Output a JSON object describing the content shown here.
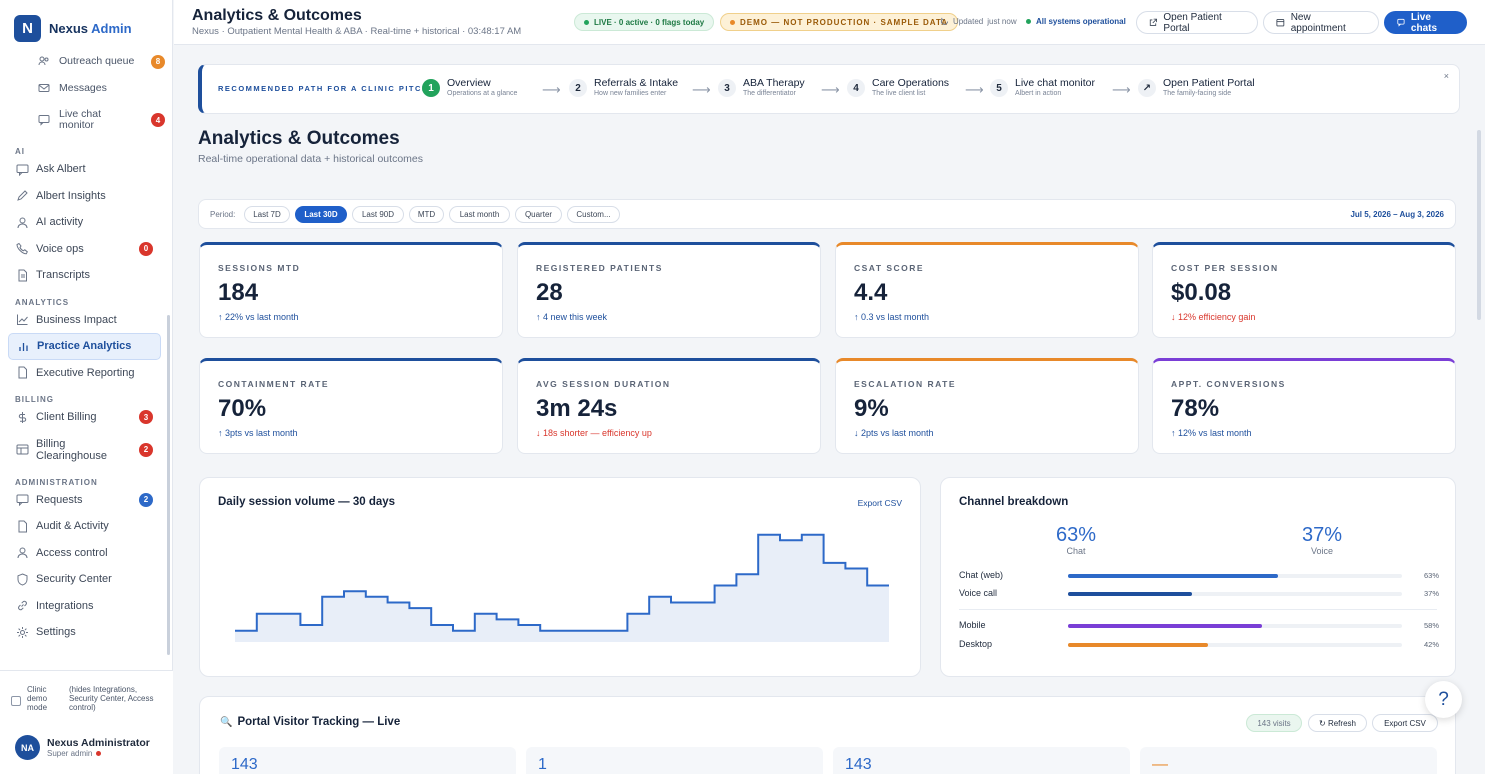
{
  "brand": {
    "logo_letter": "N",
    "name": "Nexus",
    "suffix": "Admin"
  },
  "sidebar": {
    "top_items": [
      {
        "label": "Outreach queue",
        "badge": "8",
        "icon": "users-icon"
      },
      {
        "label": "Messages",
        "icon": "mail-icon"
      },
      {
        "label": "Live chat monitor",
        "badge": "4",
        "icon": "chat-bubble-icon"
      }
    ],
    "sections": [
      {
        "title": "AI",
        "items": [
          {
            "label": "Ask Albert",
            "icon": "chat-icon"
          },
          {
            "label": "Albert Insights",
            "icon": "pen-icon"
          },
          {
            "label": "AI activity",
            "icon": "user-icon"
          },
          {
            "label": "Voice ops",
            "badge": "0",
            "icon": "phone-icon"
          },
          {
            "label": "Transcripts",
            "icon": "document-icon"
          }
        ]
      },
      {
        "title": "ANALYTICS",
        "items": [
          {
            "label": "Business Impact",
            "icon": "trend-icon"
          },
          {
            "label": "Practice Analytics",
            "icon": "bar-chart-icon",
            "active": true
          },
          {
            "label": "Executive Reporting",
            "icon": "document-icon"
          }
        ]
      },
      {
        "title": "BILLING",
        "items": [
          {
            "label": "Client Billing",
            "badge": "3",
            "icon": "dollar-icon"
          },
          {
            "label": "Billing Clearinghouse",
            "badge": "2",
            "icon": "table-icon"
          }
        ]
      },
      {
        "title": "ADMINISTRATION",
        "items": [
          {
            "label": "Requests",
            "badge": "2",
            "icon": "chat-icon"
          },
          {
            "label": "Audit & Activity",
            "icon": "document-icon"
          },
          {
            "label": "Access control",
            "icon": "user-icon"
          },
          {
            "label": "Security Center",
            "icon": "shield-icon"
          },
          {
            "label": "Integrations",
            "icon": "link-icon"
          },
          {
            "label": "Settings",
            "icon": "gear-icon"
          }
        ]
      }
    ],
    "demo_mode": {
      "label": "Clinic demo mode",
      "note": "(hides Integrations, Security Center, Access control)"
    },
    "user": {
      "initials": "NA",
      "name": "Nexus Administrator",
      "role": "Super admin"
    }
  },
  "header": {
    "title": "Analytics & Outcomes",
    "subtitle": "Nexus · Outpatient Mental Health & ABA · Real-time + historical · 03:48:17 AM",
    "live_pill": "LIVE · 0 active · 0 flags today",
    "demo_pill": "DEMO — NOT PRODUCTION · SAMPLE DATA",
    "updated": "Updated",
    "updated_when": "just now",
    "status": "All systems operational",
    "btn_portal": "Open Patient Portal",
    "btn_appt": "New appointment",
    "btn_chats": "Live chats"
  },
  "pitch": {
    "label": "RECOMMENDED PATH FOR A CLINIC PITCH",
    "steps": [
      {
        "num": "1",
        "title": "Overview",
        "sub": "Operations at a glance"
      },
      {
        "num": "2",
        "title": "Referrals & Intake",
        "sub": "How new families enter"
      },
      {
        "num": "3",
        "title": "ABA Therapy",
        "sub": "The differentiator"
      },
      {
        "num": "4",
        "title": "Care Operations",
        "sub": "The live client list"
      },
      {
        "num": "5",
        "title": "Live chat monitor",
        "sub": "Albert in action"
      },
      {
        "num": "↗",
        "title": "Open Patient Portal",
        "sub": "The family-facing side"
      }
    ],
    "close": "×"
  },
  "page": {
    "title": "Analytics & Outcomes",
    "subtitle": "Real-time operational data + historical outcomes"
  },
  "period": {
    "label": "Period:",
    "options": [
      "Last 7D",
      "Last 30D",
      "Last 90D",
      "MTD",
      "Last month",
      "Quarter",
      "Custom..."
    ],
    "selected": "Last 30D",
    "range": "Jul 5, 2026 – Aug 3, 2026"
  },
  "kpis": [
    {
      "label": "SESSIONS MTD",
      "value": "184",
      "delta": "↑ 22% vs last month",
      "dir": "up",
      "accent": "#1e4f9c"
    },
    {
      "label": "REGISTERED PATIENTS",
      "value": "28",
      "delta": "↑ 4 new this week",
      "dir": "up",
      "accent": "#1e4f9c"
    },
    {
      "label": "CSAT SCORE",
      "value": "4.4",
      "delta": "↑ 0.3 vs last month",
      "dir": "up",
      "accent": "#e8892a"
    },
    {
      "label": "COST PER SESSION",
      "value": "$0.08",
      "delta": "↓ 12% efficiency gain",
      "dir": "down",
      "accent": "#1e4f9c"
    },
    {
      "label": "CONTAINMENT RATE",
      "value": "70%",
      "delta": "↑ 3pts vs last month",
      "dir": "up",
      "accent": "#1e4f9c"
    },
    {
      "label": "AVG SESSION DURATION",
      "value": "3m 24s",
      "delta": "↓ 18s shorter — efficiency up",
      "dir": "down",
      "accent": "#1e4f9c"
    },
    {
      "label": "ESCALATION RATE",
      "value": "9%",
      "delta": "↓ 2pts vs last month",
      "dir": "up",
      "accent": "#e8892a"
    },
    {
      "label": "APPT. CONVERSIONS",
      "value": "78%",
      "delta": "↑ 12% vs last month",
      "dir": "up",
      "accent": "#7a3ed6"
    }
  ],
  "daily_volume": {
    "title": "Daily session volume — 30 days",
    "export": "Export CSV",
    "chart_data": {
      "type": "line",
      "step": true,
      "x": [
        1,
        2,
        3,
        4,
        5,
        6,
        7,
        8,
        9,
        10,
        11,
        12,
        13,
        14,
        15,
        16,
        17,
        18,
        19,
        20,
        21,
        22,
        23,
        24,
        25,
        26,
        27,
        28,
        29,
        30
      ],
      "values": [
        2,
        5,
        5,
        3,
        8,
        9,
        8,
        7,
        6,
        3,
        2,
        5,
        4,
        3,
        2,
        2,
        2,
        2,
        5,
        8,
        7,
        7,
        10,
        12,
        19,
        18,
        19,
        14,
        13,
        10
      ]
    }
  },
  "channels": {
    "title": "Channel breakdown",
    "big": [
      {
        "value": "63%",
        "label": "Chat"
      },
      {
        "value": "37%",
        "label": "Voice"
      }
    ],
    "bars": [
      {
        "name": "Chat (web)",
        "pct": 63,
        "pct_label": "63%",
        "color": "#2d69c8"
      },
      {
        "name": "Voice call",
        "pct": 37,
        "pct_label": "37%",
        "color": "#1e4f9c"
      },
      {
        "name": "Mobile",
        "pct": 58,
        "pct_label": "58%",
        "color": "#7a3ed6"
      },
      {
        "name": "Desktop",
        "pct": 42,
        "pct_label": "42%",
        "color": "#e8892a"
      }
    ]
  },
  "visitors": {
    "title": "Portal Visitor Tracking — Live",
    "icon": "🔍",
    "visits": "143 visits",
    "refresh": "↻ Refresh",
    "export": "Export CSV",
    "stats": [
      "143",
      "1",
      "143",
      "—"
    ]
  },
  "help": "?"
}
